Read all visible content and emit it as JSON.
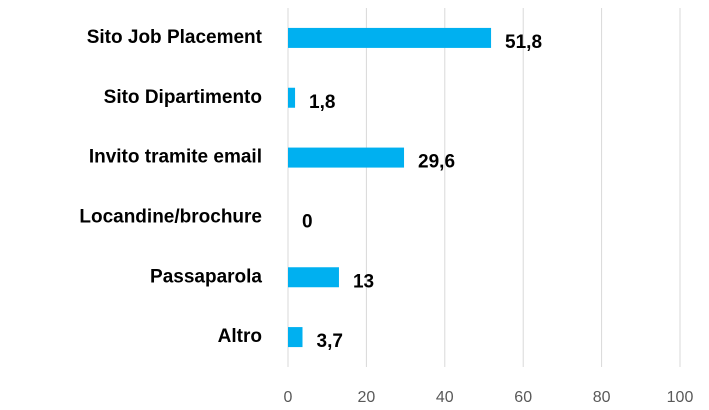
{
  "chart_data": {
    "type": "barh",
    "categories": [
      "Sito Job Placement",
      "Sito Dipartimento",
      "Invito tramite email",
      "Locandine/brochure",
      "Passaparola",
      "Altro"
    ],
    "values": [
      51.8,
      1.8,
      29.6,
      0,
      13,
      3.7
    ],
    "value_labels": [
      "51,8",
      "1,8",
      "29,6",
      "0",
      "13",
      "3,7"
    ],
    "color": "#00b0f0",
    "xlim": [
      0,
      100
    ],
    "xticks": [
      0,
      20,
      40,
      60,
      80,
      100
    ],
    "grid": true
  }
}
